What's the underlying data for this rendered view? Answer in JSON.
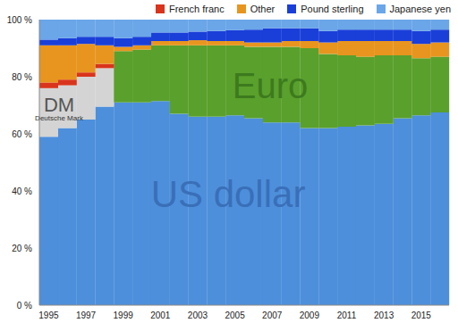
{
  "chart_data": {
    "type": "bar",
    "stacked": true,
    "grid": false,
    "legend": "top right",
    "categories": [
      "1995",
      null,
      "1997",
      null,
      "1999",
      null,
      "2001",
      null,
      "2003",
      null,
      "2005",
      null,
      "2007",
      null,
      "2009",
      null,
      "2011",
      null,
      "2013",
      null,
      "2015",
      null
    ],
    "ylim": [
      0,
      100
    ],
    "yticks": [
      {
        "value": 0,
        "label": "0 %"
      },
      {
        "value": 20,
        "label": "20 %"
      },
      {
        "value": 40,
        "label": "40 %"
      },
      {
        "value": 60,
        "label": "60 %"
      },
      {
        "value": 80,
        "label": "80 %"
      },
      {
        "value": 100,
        "label": "100 %"
      }
    ],
    "annotations": [
      "US dollar",
      "Euro",
      "DM",
      "Deutsche Mark"
    ],
    "series": [
      {
        "name": "US dollar",
        "color": "#4d8fdb",
        "values": [
          59,
          62,
          65,
          69.5,
          71,
          71,
          71.5,
          67,
          66,
          66,
          66.5,
          65.5,
          64,
          64,
          62,
          62,
          62.5,
          63,
          63.5,
          65.5,
          66.5,
          67.5
        ]
      },
      {
        "name": "DM",
        "color": "#d4d4d4",
        "values": [
          17,
          15,
          15,
          13.5,
          null,
          null,
          null,
          null,
          null,
          null,
          null,
          null,
          null,
          null,
          null,
          null,
          null,
          null,
          null,
          null,
          null,
          null
        ]
      },
      {
        "name": "Euro",
        "color": "#5aa02c",
        "values": [
          null,
          null,
          null,
          null,
          18,
          18.5,
          19.5,
          24,
          25,
          25,
          24.5,
          25,
          26.5,
          26.5,
          28,
          26,
          25,
          24,
          24,
          22,
          20,
          19.5
        ]
      },
      {
        "name": "French franc",
        "color": "#d9341c",
        "values": [
          2,
          2,
          1.5,
          1.5,
          null,
          null,
          null,
          null,
          null,
          null,
          null,
          null,
          null,
          null,
          null,
          null,
          null,
          null,
          null,
          null,
          null,
          null
        ]
      },
      {
        "name": "Other",
        "color": "#e8951f",
        "values": [
          13,
          12,
          10,
          6.5,
          1.5,
          1.5,
          1.5,
          1.5,
          1.8,
          1.5,
          1.5,
          1.5,
          1.5,
          2,
          2.5,
          4,
          5,
          5.5,
          5,
          5,
          5,
          5
        ]
      },
      {
        "name": "Pound sterling",
        "color": "#1a3fd8",
        "values": [
          2,
          2.5,
          2.5,
          3,
          3,
          3,
          3,
          3,
          3,
          3.5,
          3.8,
          4.5,
          5,
          4.5,
          4.5,
          4,
          4,
          4,
          4,
          4,
          4.5,
          4.5
        ]
      },
      {
        "name": "Japanese yen",
        "color": "#6aa6e8",
        "values": [
          7,
          6.5,
          6,
          6,
          6.5,
          6,
          4.5,
          4.5,
          4.2,
          4,
          3.7,
          3.5,
          3,
          3,
          3,
          4,
          3.5,
          3.5,
          3.5,
          3.5,
          4,
          3.5
        ]
      }
    ]
  }
}
